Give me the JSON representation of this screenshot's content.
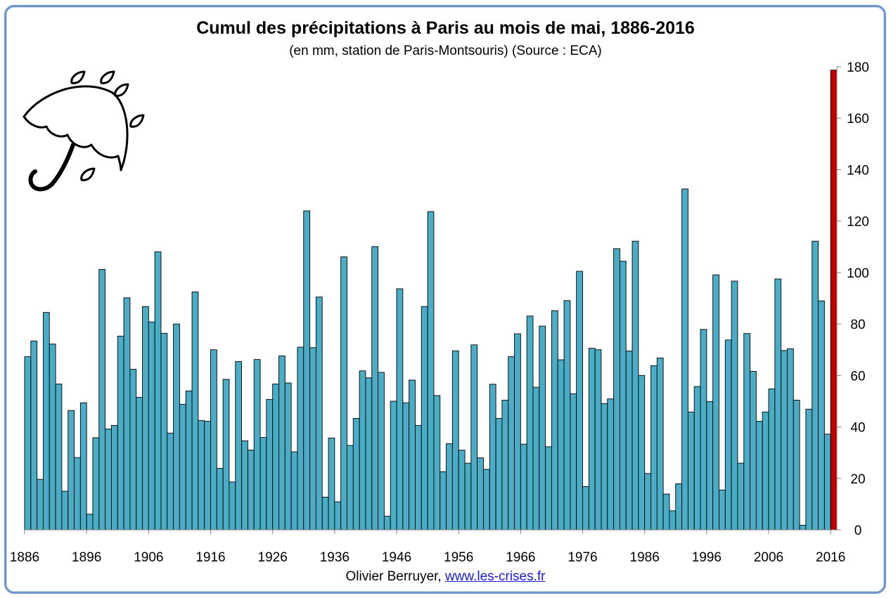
{
  "chart_data": {
    "type": "bar",
    "title": "Cumul des précipitations à Paris au mois de mai, 1886-2016",
    "subtitle": "(en mm, station de Paris-Montsouris) (Source : ECA)",
    "xlabel": "",
    "ylabel": "",
    "ylim": [
      0,
      180
    ],
    "yticks": [
      0,
      20,
      40,
      60,
      80,
      100,
      120,
      140,
      160,
      180
    ],
    "xticks": [
      "1886",
      "1896",
      "1906",
      "1916",
      "1926",
      "1936",
      "1946",
      "1956",
      "1966",
      "1976",
      "1986",
      "1996",
      "2006",
      "2016"
    ],
    "y_axis_position": "right",
    "grid": false,
    "legend": "none",
    "colors": {
      "bars": "#4bacc6",
      "highlight": "#c00000",
      "bar_edge": "#000000"
    },
    "highlight_year": "2016",
    "x": [
      "1886",
      "1887",
      "1888",
      "1889",
      "1890",
      "1891",
      "1892",
      "1893",
      "1894",
      "1895",
      "1896",
      "1897",
      "1898",
      "1899",
      "1900",
      "1901",
      "1902",
      "1903",
      "1904",
      "1905",
      "1906",
      "1907",
      "1908",
      "1909",
      "1910",
      "1911",
      "1912",
      "1913",
      "1914",
      "1915",
      "1916",
      "1917",
      "1918",
      "1919",
      "1920",
      "1921",
      "1922",
      "1923",
      "1924",
      "1925",
      "1926",
      "1927",
      "1928",
      "1929",
      "1930",
      "1931",
      "1932",
      "1933",
      "1934",
      "1935",
      "1936",
      "1937",
      "1938",
      "1939",
      "1940",
      "1941",
      "1942",
      "1943",
      "1944",
      "1945",
      "1946",
      "1947",
      "1948",
      "1949",
      "1950",
      "1951",
      "1952",
      "1953",
      "1954",
      "1955",
      "1956",
      "1957",
      "1958",
      "1959",
      "1960",
      "1961",
      "1962",
      "1963",
      "1964",
      "1965",
      "1966",
      "1967",
      "1968",
      "1969",
      "1970",
      "1971",
      "1972",
      "1973",
      "1974",
      "1975",
      "1976",
      "1977",
      "1978",
      "1979",
      "1980",
      "1981",
      "1982",
      "1983",
      "1984",
      "1985",
      "1986",
      "1987",
      "1988",
      "1989",
      "1990",
      "1991",
      "1992",
      "1993",
      "1994",
      "1995",
      "1996",
      "1997",
      "1998",
      "1999",
      "2000",
      "2001",
      "2002",
      "2003",
      "2004",
      "2005",
      "2006",
      "2007",
      "2008",
      "2009",
      "2010",
      "2011",
      "2012",
      "2013",
      "2014",
      "2015",
      "2016"
    ],
    "values": [
      67.3,
      73.4,
      19.6,
      84.5,
      72.2,
      56.7,
      15.0,
      46.4,
      28.1,
      49.4,
      6.1,
      35.8,
      101.2,
      39.2,
      40.6,
      75.3,
      90.2,
      62.4,
      51.5,
      86.8,
      80.8,
      108.1,
      76.4,
      37.6,
      80.0,
      48.8,
      54.0,
      92.5,
      42.5,
      42.2,
      70.0,
      23.9,
      58.5,
      18.6,
      65.4,
      34.6,
      31.0,
      66.2,
      35.9,
      50.7,
      56.7,
      67.6,
      57.1,
      30.3,
      71.0,
      124.0,
      70.8,
      90.5,
      12.7,
      35.7,
      10.9,
      106.1,
      32.8,
      43.3,
      61.8,
      59.1,
      110.1,
      61.2,
      5.3,
      50.0,
      93.7,
      49.4,
      58.2,
      40.6,
      86.8,
      123.7,
      52.2,
      22.6,
      33.5,
      69.6,
      31.0,
      25.9,
      71.9,
      28.0,
      23.5,
      56.6,
      43.3,
      50.4,
      67.3,
      76.2,
      33.3,
      83.1,
      55.4,
      79.2,
      32.3,
      85.2,
      66.1,
      89.1,
      52.9,
      100.5,
      16.8,
      70.6,
      70.0,
      49.1,
      50.9,
      109.3,
      104.4,
      69.5,
      112.2,
      60.0,
      21.9,
      63.8,
      66.8,
      13.9,
      7.4,
      17.9,
      132.5,
      45.8,
      55.7,
      77.9,
      49.9,
      99.1,
      15.5,
      73.8,
      96.7,
      25.9,
      76.3,
      61.6,
      42.2,
      45.8,
      54.8,
      97.5,
      69.7,
      70.4,
      50.4,
      1.8,
      46.9,
      112.2,
      89.0,
      37.2,
      178.7
    ]
  },
  "footer": {
    "author": "Olivier Berruyer,",
    "link": "www.les-crises.fr"
  },
  "decoration": {
    "icon": "umbrella-rain-icon"
  }
}
